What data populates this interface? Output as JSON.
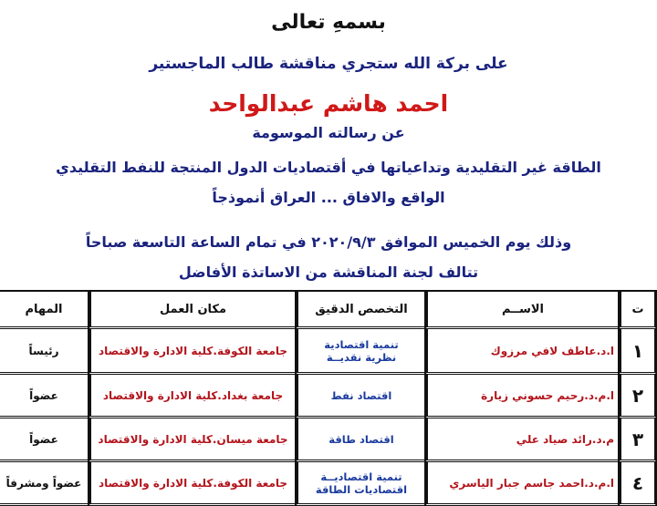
{
  "heading": "بسمهِ تعالى",
  "intro": "على بركة الله ستجري مناقشة طالب الماجستير",
  "student_name": "احمد هاشم عبدالواحد",
  "thesis_intro": "عن رسالته الموسومة",
  "thesis_title_line1": "الطاقة غير التقليدية وتداعياتها في أقتصاديات الدول المنتجة للنفط التقليدي",
  "thesis_title_line2": "الواقع والافاق ... العراق أنموذجاً",
  "date_line": "وذلك يوم الخميس الموافق ٢٠٢٠/٩/٣ في تمام الساعة التاسعة صباحاً",
  "committee_intro": "تتالف لجنة المناقشة من الاساتذة الأفاضل",
  "table": {
    "headers": [
      "ت",
      "الاســم",
      "التخصص الدقيق",
      "مكان العمل",
      "المهام"
    ],
    "rows": [
      {
        "num": "١",
        "name": "ا.د.عاطف لافي مرزوك",
        "spec1": "تنمية اقتصادية",
        "spec2": "نظرية نقديــة",
        "work": "جامعة الكوفة.كلية الادارة والاقتصاد",
        "role": "رئيساً"
      },
      {
        "num": "٢",
        "name": "ا.م.د.رحيم حسوني زيارة",
        "spec1": "اقتصاد نفط",
        "spec2": "",
        "work": "جامعة بغداد.كلية الادارة والاقتصاد",
        "role": "عضواً"
      },
      {
        "num": "٣",
        "name": "م.د.رائد صياد علي",
        "spec1": "اقتصاد طاقة",
        "spec2": "",
        "work": "جامعة ميسان.كلية الادارة والاقتصاد",
        "role": "عضواً"
      },
      {
        "num": "٤",
        "name": "ا.م.د.احمد جاسم جبار الياسري",
        "spec1": "تنمية اقتصاديــة",
        "spec2": "اقتصاديات الطاقة",
        "work": "جامعة الكوفة.كلية الادارة والاقتصاد",
        "role": "عضواً ومشرفاً"
      }
    ]
  },
  "colors": {
    "blue_text": "#1a237e",
    "red_text": "#d01818"
  }
}
